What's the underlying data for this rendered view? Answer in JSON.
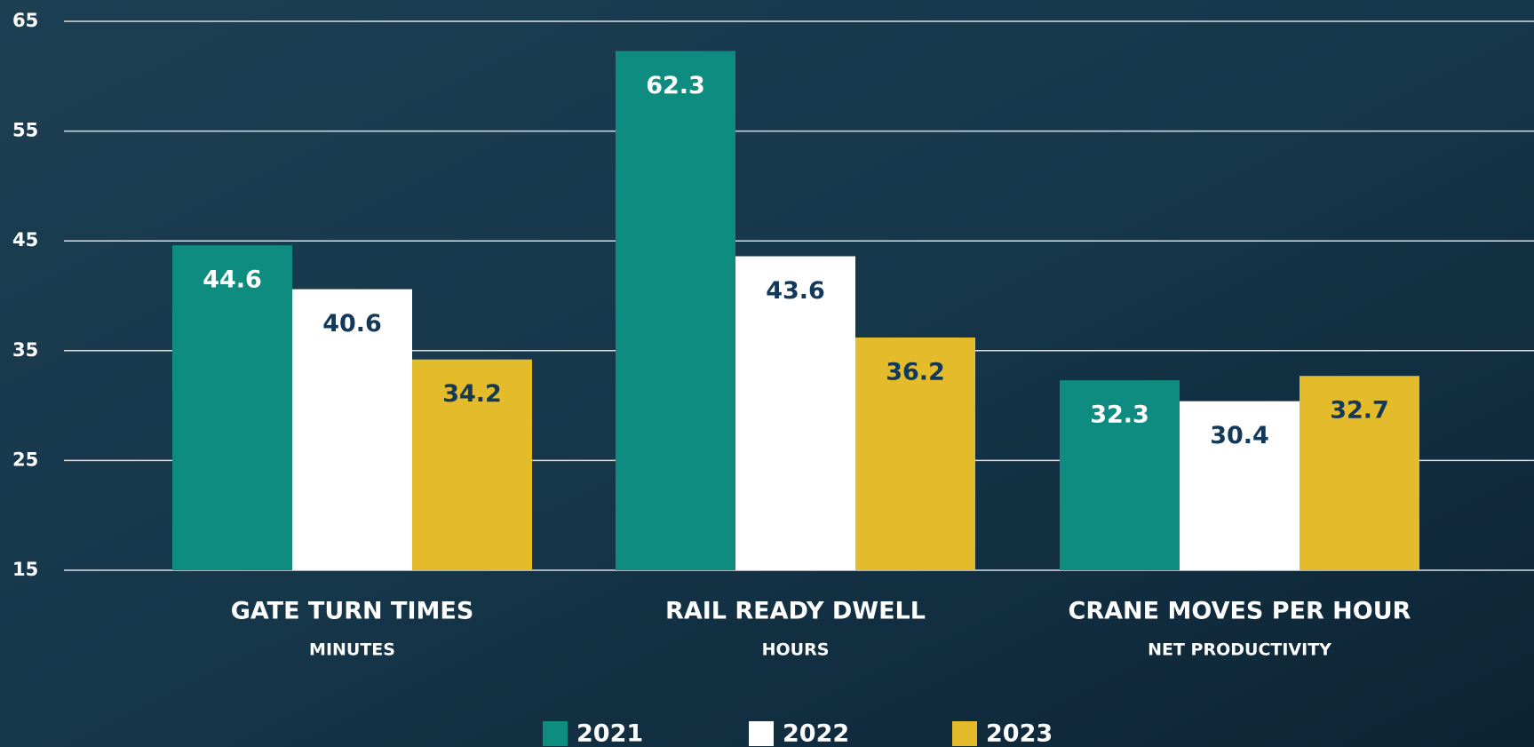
{
  "chart_data": {
    "type": "bar",
    "categories": [
      "GATE TURN TIMES",
      "RAIL READY DWELL",
      "CRANE MOVES PER HOUR"
    ],
    "category_subtitles": [
      "MINUTES",
      "HOURS",
      "NET PRODUCTIVITY"
    ],
    "series": [
      {
        "name": "2021",
        "color": "#0f8c80",
        "label_color": "#ffffff",
        "values": [
          44.6,
          62.3,
          32.3
        ]
      },
      {
        "name": "2022",
        "color": "#ffffff",
        "label_color": "#12395a",
        "values": [
          40.6,
          43.6,
          30.4
        ]
      },
      {
        "name": "2023",
        "color": "#e3bb2b",
        "label_color": "#12395a",
        "values": [
          34.2,
          36.2,
          32.7
        ]
      }
    ],
    "ylim": [
      15,
      65
    ],
    "yticks": [
      15,
      25,
      35,
      45,
      55,
      65
    ],
    "grid": true,
    "legend": "bottom"
  }
}
